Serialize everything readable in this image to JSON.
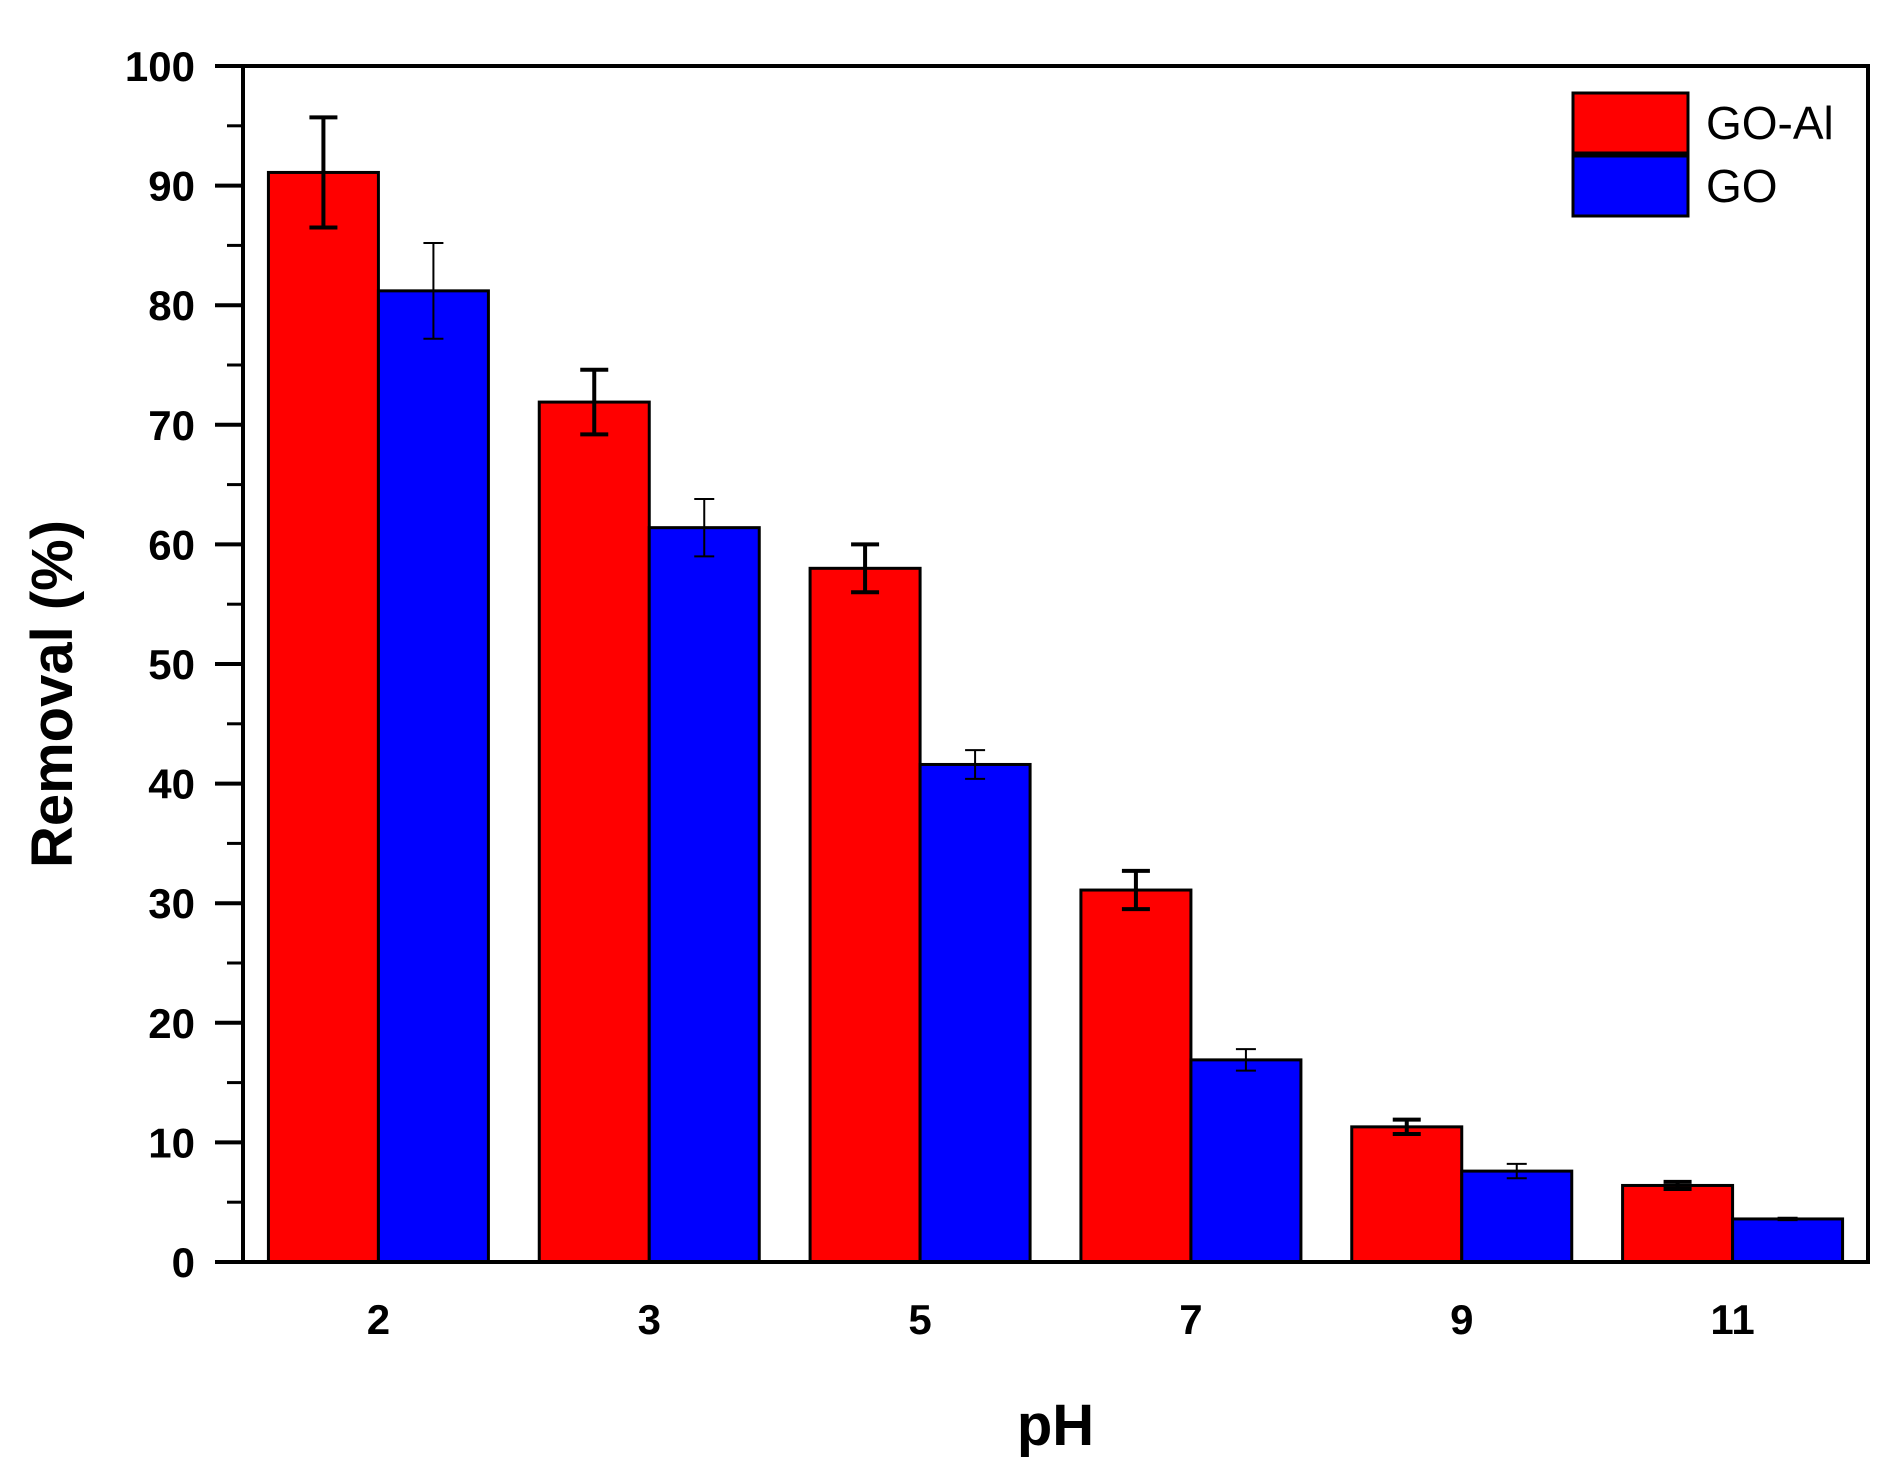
{
  "chart_data": {
    "type": "bar",
    "title": "",
    "xlabel": "pH",
    "ylabel": "Removal (%)",
    "categories": [
      "2",
      "3",
      "5",
      "7",
      "9",
      "11"
    ],
    "series": [
      {
        "name": "GO-Al",
        "color": "#ff0000",
        "values": [
          91.1,
          71.9,
          58.0,
          31.1,
          11.3,
          6.4
        ],
        "errors": [
          4.6,
          2.7,
          2.0,
          1.6,
          0.6,
          0.3
        ]
      },
      {
        "name": "GO",
        "color": "#0000ff",
        "values": [
          81.2,
          61.4,
          41.6,
          16.9,
          7.6,
          3.6
        ],
        "errors": [
          4.0,
          2.4,
          1.2,
          0.9,
          0.6,
          0.1
        ]
      }
    ],
    "ylim": [
      0,
      100
    ],
    "yticks": [
      0,
      10,
      20,
      30,
      40,
      50,
      60,
      70,
      80,
      90,
      100
    ],
    "grid": false,
    "legend_position": "top-right"
  }
}
